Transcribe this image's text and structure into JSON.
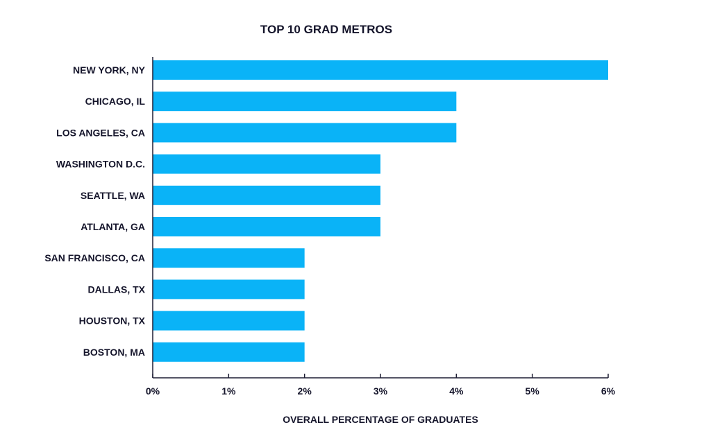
{
  "chart_data": {
    "type": "bar",
    "orientation": "horizontal",
    "title": "TOP 10 GRAD METROS",
    "xlabel": "OVERALL PERCENTAGE OF GRADUATES",
    "ylabel": "",
    "categories": [
      "NEW YORK, NY",
      "CHICAGO, IL",
      "LOS ANGELES, CA",
      "WASHINGTON D.C.",
      "SEATTLE, WA",
      "ATLANTA, GA",
      "SAN FRANCISCO, CA",
      "DALLAS, TX",
      "HOUSTON, TX",
      "BOSTON, MA"
    ],
    "values": [
      6,
      4,
      4,
      3,
      3,
      3,
      2,
      2,
      2,
      2
    ],
    "unit": "%",
    "xlim": [
      0,
      6
    ],
    "xticks": [
      0,
      1,
      2,
      3,
      4,
      5,
      6
    ],
    "xtick_labels": [
      "0%",
      "1%",
      "2%",
      "3%",
      "4%",
      "5%",
      "6%"
    ],
    "grid": false,
    "legend": "none",
    "colors": {
      "bar": "#0ab3f7",
      "axis": "#1d1d33",
      "text": "#15152b"
    }
  }
}
